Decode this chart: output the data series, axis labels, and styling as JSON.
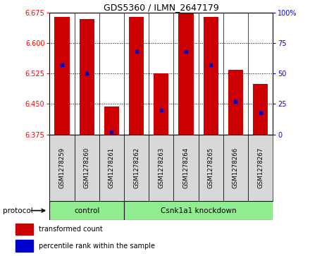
{
  "title": "GDS5360 / ILMN_2647179",
  "samples": [
    "GSM1278259",
    "GSM1278260",
    "GSM1278261",
    "GSM1278262",
    "GSM1278263",
    "GSM1278264",
    "GSM1278265",
    "GSM1278266",
    "GSM1278267"
  ],
  "transformed_count": [
    6.665,
    6.66,
    6.443,
    6.665,
    6.525,
    6.675,
    6.665,
    6.535,
    6.5
  ],
  "percentile_rank": [
    57,
    50,
    2,
    68,
    20,
    68,
    57,
    27,
    18
  ],
  "ylim": [
    6.375,
    6.675
  ],
  "yticks": [
    6.375,
    6.45,
    6.525,
    6.6,
    6.675
  ],
  "right_yticks": [
    0,
    25,
    50,
    75,
    100
  ],
  "right_ylim": [
    0,
    100
  ],
  "bar_color": "#cc0000",
  "dot_color": "#0000cc",
  "protocol_label": "protocol",
  "legend_items": [
    {
      "label": "transformed count",
      "color": "#cc0000"
    },
    {
      "label": "percentile rank within the sample",
      "color": "#0000cc"
    }
  ],
  "sample_bg": "#d8d8d8",
  "group_bg": "#90ee90",
  "plot_bg": "#ffffff",
  "bar_width": 0.6,
  "ctrl_count": 3,
  "kd_count": 6,
  "ctrl_label": "control",
  "kd_label": "Csnk1a1 knockdown"
}
